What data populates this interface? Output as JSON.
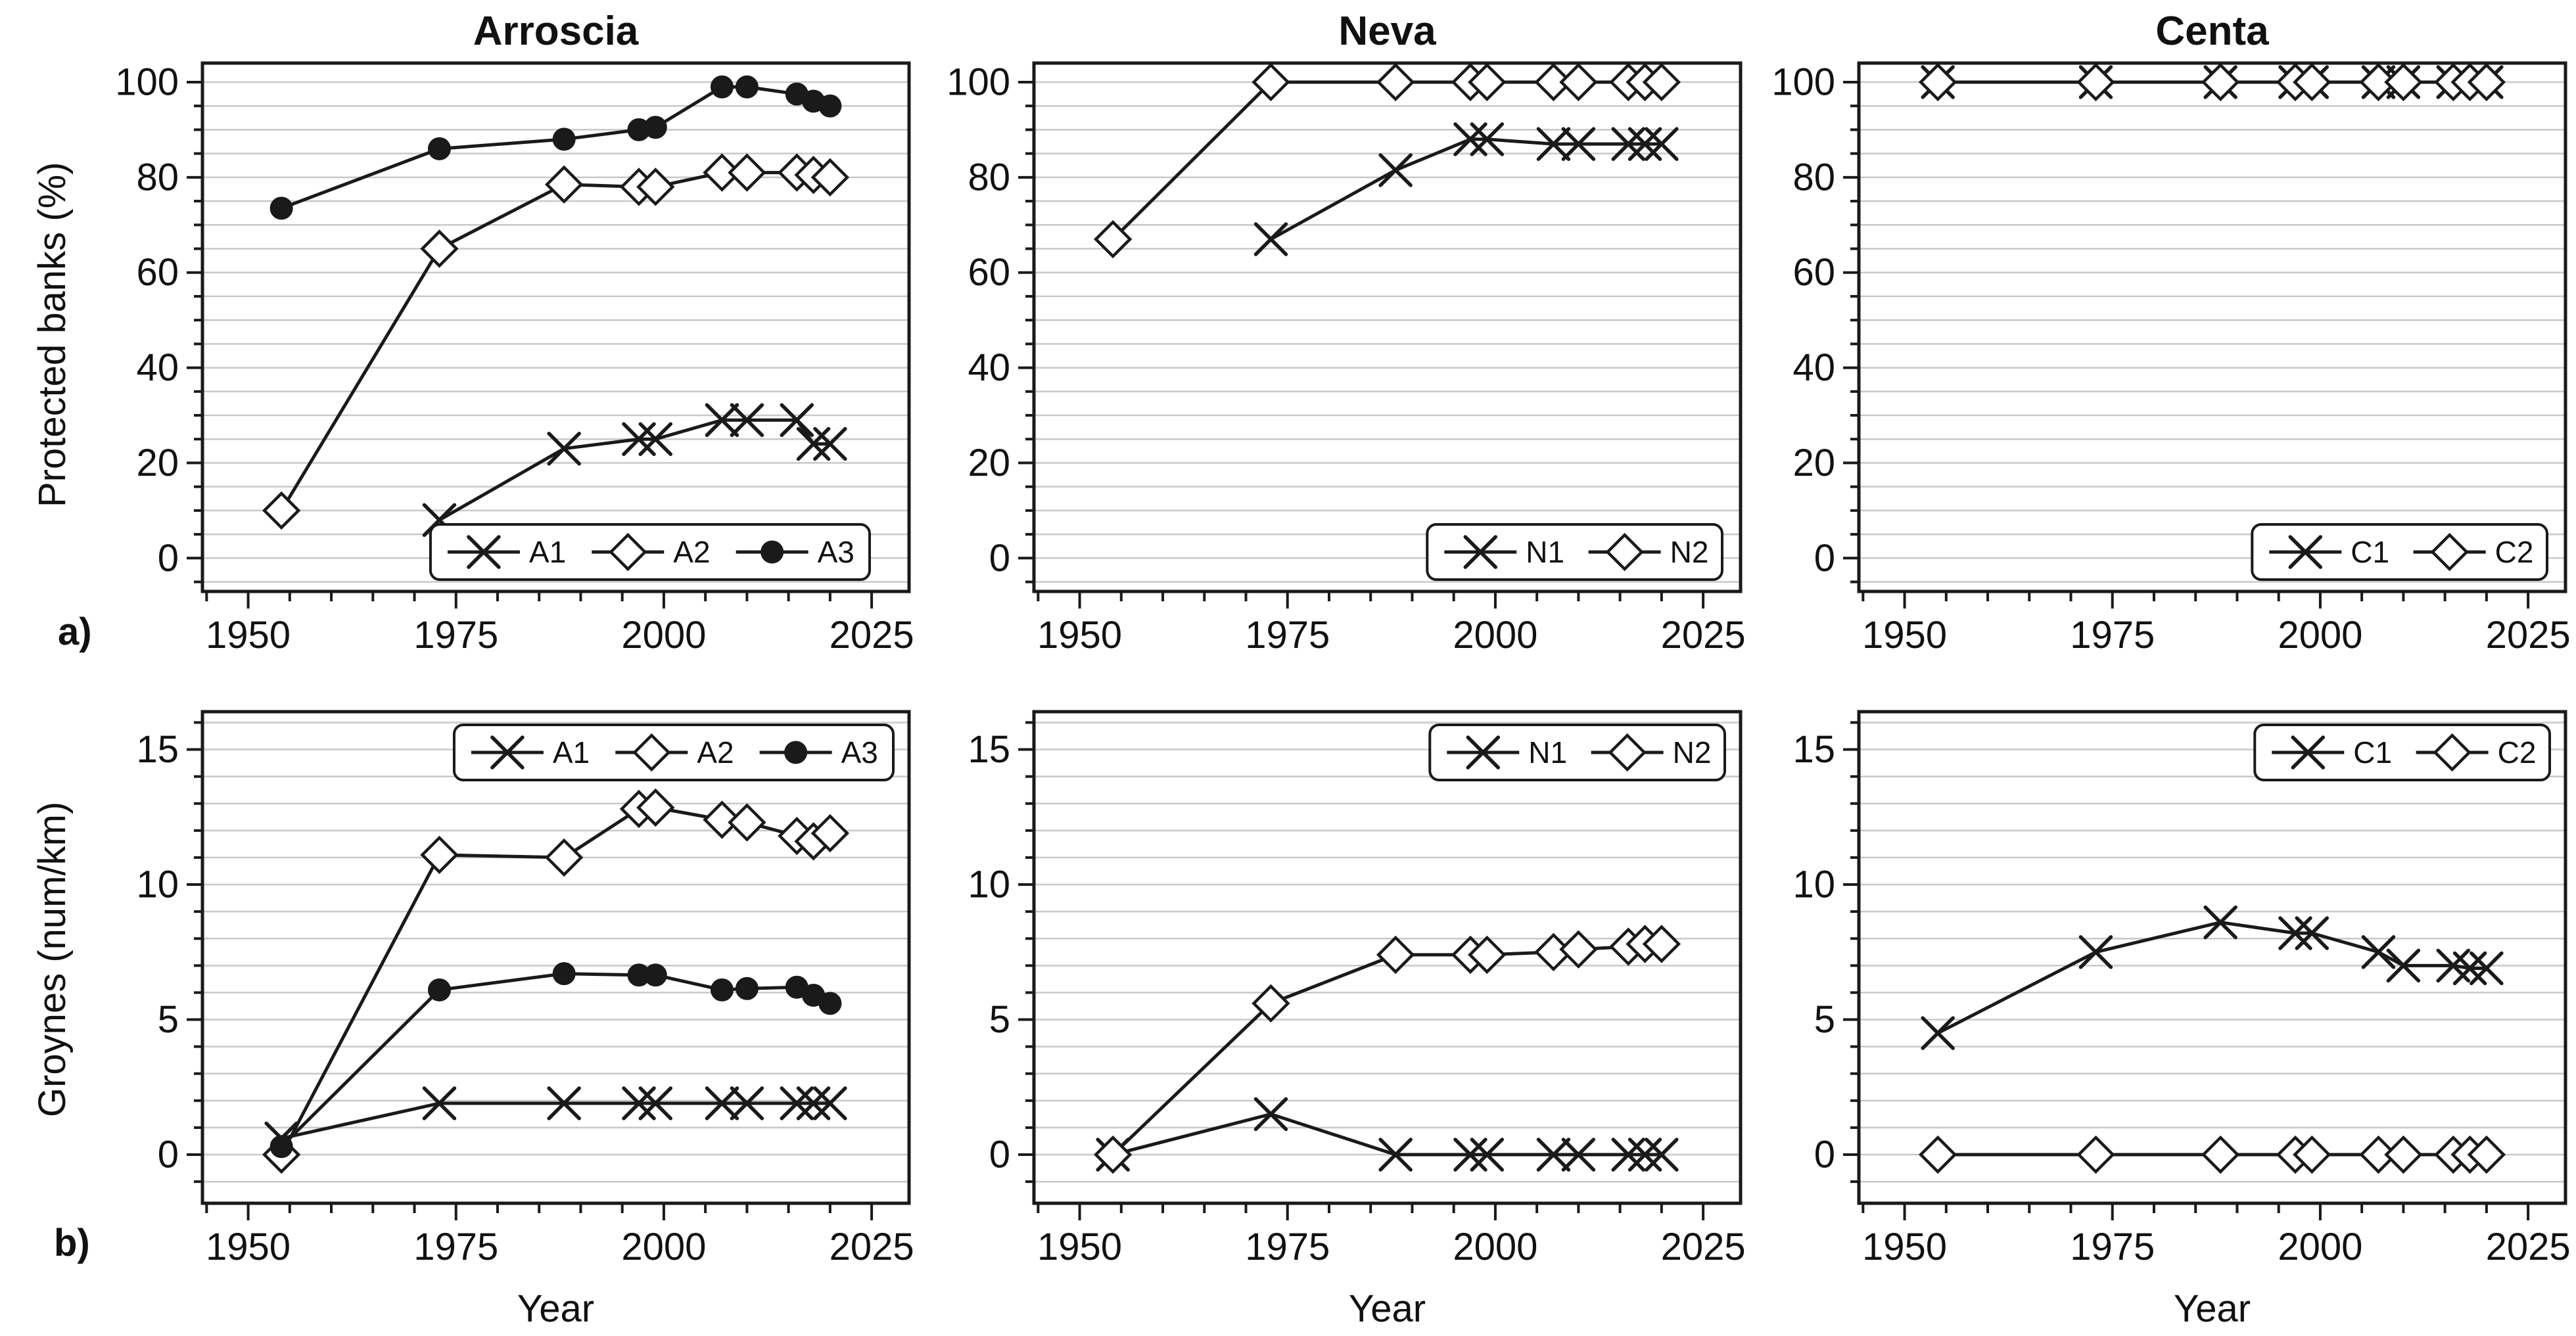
{
  "figure": {
    "panel_labels": {
      "a": "a)",
      "b": "b)"
    },
    "colors": {
      "line": "#1a1a1a",
      "grid": "#c8c8c8",
      "frame": "#1a1a1a",
      "background": "#ffffff",
      "text": "#111111"
    }
  },
  "chart_data": [
    {
      "id": "arroscia-protected-banks",
      "type": "line",
      "title": "Arroscia",
      "ylabel": "Protected banks (%)",
      "xlabel": "",
      "xlim": [
        1944.5,
        2029.5
      ],
      "ylim": [
        -7,
        104
      ],
      "x_major_ticks": [
        1950,
        1975,
        2000,
        2025
      ],
      "x_minor_step": 5,
      "y_major_ticks": [
        0,
        20,
        40,
        60,
        80,
        100
      ],
      "y_minor_step": 5,
      "grid": "horizontal",
      "legend_position": "bottom-right",
      "series": [
        {
          "name": "A1",
          "marker": "x",
          "x": [
            1973,
            1988,
            1997,
            1999,
            2007,
            2010,
            2016,
            2018,
            2020
          ],
          "y": [
            8,
            23,
            25,
            25,
            29,
            29,
            29,
            24,
            24
          ]
        },
        {
          "name": "A2",
          "marker": "diamond",
          "x": [
            1954,
            1973,
            1988,
            1997,
            1999,
            2007,
            2010,
            2016,
            2018,
            2020
          ],
          "y": [
            10,
            65,
            78.5,
            78,
            78,
            81,
            81,
            81,
            80.5,
            80
          ]
        },
        {
          "name": "A3",
          "marker": "circle",
          "x": [
            1954,
            1973,
            1988,
            1997,
            1999,
            2007,
            2010,
            2016,
            2018,
            2020
          ],
          "y": [
            73.5,
            86,
            88,
            90,
            90.5,
            99,
            99,
            97.5,
            96,
            95
          ]
        }
      ]
    },
    {
      "id": "neva-protected-banks",
      "type": "line",
      "title": "Neva",
      "ylabel": "",
      "xlabel": "",
      "xlim": [
        1944.5,
        2029.5
      ],
      "ylim": [
        -7,
        104
      ],
      "x_major_ticks": [
        1950,
        1975,
        2000,
        2025
      ],
      "x_minor_step": 5,
      "y_major_ticks": [
        0,
        20,
        40,
        60,
        80,
        100
      ],
      "y_minor_step": 5,
      "grid": "horizontal",
      "legend_position": "bottom-right",
      "series": [
        {
          "name": "N1",
          "marker": "x",
          "x": [
            1973,
            1988,
            1997,
            1999,
            2007,
            2010,
            2016,
            2018,
            2020
          ],
          "y": [
            67,
            81.5,
            88,
            88,
            87,
            87,
            87,
            87,
            87
          ]
        },
        {
          "name": "N2",
          "marker": "diamond",
          "x": [
            1954,
            1973,
            1988,
            1997,
            1999,
            2007,
            2010,
            2016,
            2018,
            2020
          ],
          "y": [
            67,
            100,
            100,
            100,
            100,
            100,
            100,
            100,
            100,
            100
          ]
        }
      ]
    },
    {
      "id": "centa-protected-banks",
      "type": "line",
      "title": "Centa",
      "ylabel": "",
      "xlabel": "",
      "xlim": [
        1944.5,
        2029.5
      ],
      "ylim": [
        -7,
        104
      ],
      "x_major_ticks": [
        1950,
        1975,
        2000,
        2025
      ],
      "x_minor_step": 5,
      "y_major_ticks": [
        0,
        20,
        40,
        60,
        80,
        100
      ],
      "y_minor_step": 5,
      "grid": "horizontal",
      "legend_position": "bottom-right",
      "series": [
        {
          "name": "C1",
          "marker": "x",
          "x": [
            1954,
            1973,
            1988,
            1997,
            1999,
            2007,
            2010,
            2016,
            2018,
            2020
          ],
          "y": [
            100,
            100,
            100,
            100,
            100,
            100,
            100,
            100,
            100,
            100
          ]
        },
        {
          "name": "C2",
          "marker": "diamond",
          "x": [
            1954,
            1973,
            1988,
            1997,
            1999,
            2007,
            2010,
            2016,
            2018,
            2020
          ],
          "y": [
            100,
            100,
            100,
            100,
            100,
            100,
            100,
            100,
            100,
            100
          ]
        }
      ]
    },
    {
      "id": "arroscia-groynes",
      "type": "line",
      "title": "",
      "ylabel": "Groynes (num/km)",
      "xlabel": "Year",
      "xlim": [
        1944.5,
        2029.5
      ],
      "ylim": [
        -1.8,
        16.4
      ],
      "x_major_ticks": [
        1950,
        1975,
        2000,
        2025
      ],
      "x_minor_step": 5,
      "y_major_ticks": [
        0,
        5,
        10,
        15
      ],
      "y_minor_step": 1,
      "grid": "horizontal",
      "legend_position": "top-right",
      "series": [
        {
          "name": "A1",
          "marker": "x",
          "x": [
            1954,
            1973,
            1988,
            1997,
            1999,
            2007,
            2010,
            2016,
            2018,
            2020
          ],
          "y": [
            0.6,
            1.9,
            1.9,
            1.9,
            1.9,
            1.9,
            1.9,
            1.9,
            1.9,
            1.9
          ]
        },
        {
          "name": "A2",
          "marker": "diamond",
          "x": [
            1954,
            1973,
            1988,
            1997,
            1999,
            2007,
            2010,
            2016,
            2018,
            2020
          ],
          "y": [
            0,
            11.1,
            11,
            12.8,
            12.85,
            12.4,
            12.3,
            11.8,
            11.6,
            11.9
          ]
        },
        {
          "name": "A3",
          "marker": "circle",
          "x": [
            1954,
            1973,
            1988,
            1997,
            1999,
            2007,
            2010,
            2016,
            2018,
            2020
          ],
          "y": [
            0.3,
            6.1,
            6.7,
            6.65,
            6.65,
            6.1,
            6.15,
            6.2,
            5.9,
            5.6
          ]
        }
      ]
    },
    {
      "id": "neva-groynes",
      "type": "line",
      "title": "",
      "ylabel": "",
      "xlabel": "Year",
      "xlim": [
        1944.5,
        2029.5
      ],
      "ylim": [
        -1.8,
        16.4
      ],
      "x_major_ticks": [
        1950,
        1975,
        2000,
        2025
      ],
      "x_minor_step": 5,
      "y_major_ticks": [
        0,
        5,
        10,
        15
      ],
      "y_minor_step": 1,
      "grid": "horizontal",
      "legend_position": "top-right",
      "series": [
        {
          "name": "N1",
          "marker": "x",
          "x": [
            1954,
            1973,
            1988,
            1997,
            1999,
            2007,
            2010,
            2016,
            2018,
            2020
          ],
          "y": [
            0,
            1.5,
            0,
            0,
            0,
            0,
            0,
            0,
            0,
            0
          ]
        },
        {
          "name": "N2",
          "marker": "diamond",
          "x": [
            1954,
            1973,
            1988,
            1997,
            1999,
            2007,
            2010,
            2016,
            2018,
            2020
          ],
          "y": [
            0,
            5.6,
            7.4,
            7.4,
            7.4,
            7.5,
            7.6,
            7.7,
            7.8,
            7.8
          ]
        }
      ]
    },
    {
      "id": "centa-groynes",
      "type": "line",
      "title": "",
      "ylabel": "",
      "xlabel": "Year",
      "xlim": [
        1944.5,
        2029.5
      ],
      "ylim": [
        -1.8,
        16.4
      ],
      "x_major_ticks": [
        1950,
        1975,
        2000,
        2025
      ],
      "x_minor_step": 5,
      "y_major_ticks": [
        0,
        5,
        10,
        15
      ],
      "y_minor_step": 1,
      "grid": "horizontal",
      "legend_position": "top-right",
      "series": [
        {
          "name": "C1",
          "marker": "x",
          "x": [
            1954,
            1973,
            1988,
            1997,
            1999,
            2007,
            2010,
            2016,
            2018,
            2020
          ],
          "y": [
            4.5,
            7.5,
            8.6,
            8.2,
            8.2,
            7.5,
            7,
            7,
            6.9,
            6.9
          ]
        },
        {
          "name": "C2",
          "marker": "diamond",
          "x": [
            1954,
            1973,
            1988,
            1997,
            1999,
            2007,
            2010,
            2016,
            2018,
            2020
          ],
          "y": [
            0,
            0,
            0,
            0,
            0,
            0,
            0,
            0,
            0,
            0
          ]
        }
      ]
    }
  ]
}
